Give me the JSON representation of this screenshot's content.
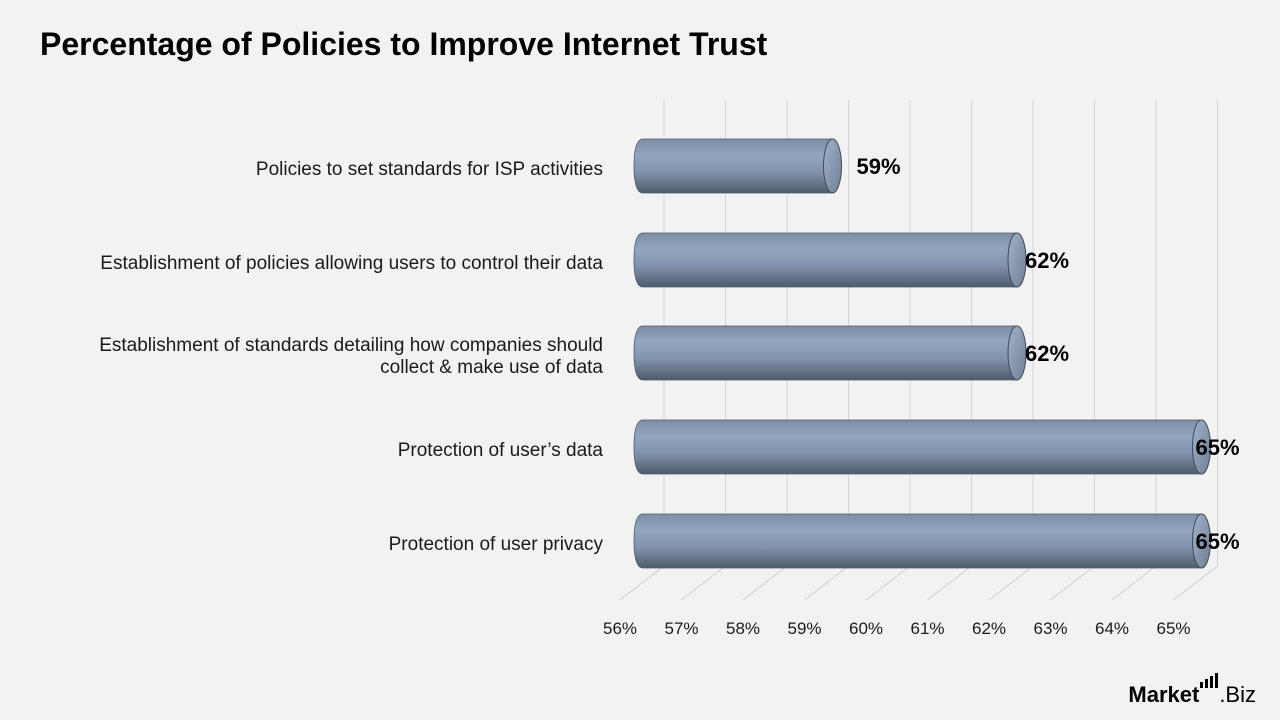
{
  "chart_data": {
    "type": "bar",
    "orientation": "horizontal",
    "style": "3d-cylinder",
    "title": "Percentage of Policies to Improve Internet Trust",
    "categories": [
      "Policies to set standards for ISP activities",
      "Establishment of policies allowing users to control their data",
      "Establishment of standards detailing how companies should collect & make use of data",
      "Protection of user’s data",
      "Protection of user privacy"
    ],
    "category_lines": [
      [
        "Policies to set standards for ISP activities"
      ],
      [
        "Establishment of policies allowing users to control their data"
      ],
      [
        "Establishment of standards detailing how companies should",
        "collect & make use of data"
      ],
      [
        "Protection of user’s data"
      ],
      [
        "Protection of user privacy"
      ]
    ],
    "values": [
      59,
      62,
      62,
      65,
      65
    ],
    "data_labels": [
      "59%",
      "62%",
      "62%",
      "65%",
      "65%"
    ],
    "xlim": [
      56,
      65
    ],
    "ticks": [
      56,
      57,
      58,
      59,
      60,
      61,
      62,
      63,
      64,
      65
    ],
    "tick_labels": [
      "56%",
      "57%",
      "58%",
      "59%",
      "60%",
      "61%",
      "62%",
      "63%",
      "64%",
      "65%"
    ],
    "xlabel": "",
    "ylabel": "",
    "grid": true,
    "bar_color": "#8497b0"
  },
  "brand": {
    "part1": "Market",
    "part2": ".Biz"
  }
}
